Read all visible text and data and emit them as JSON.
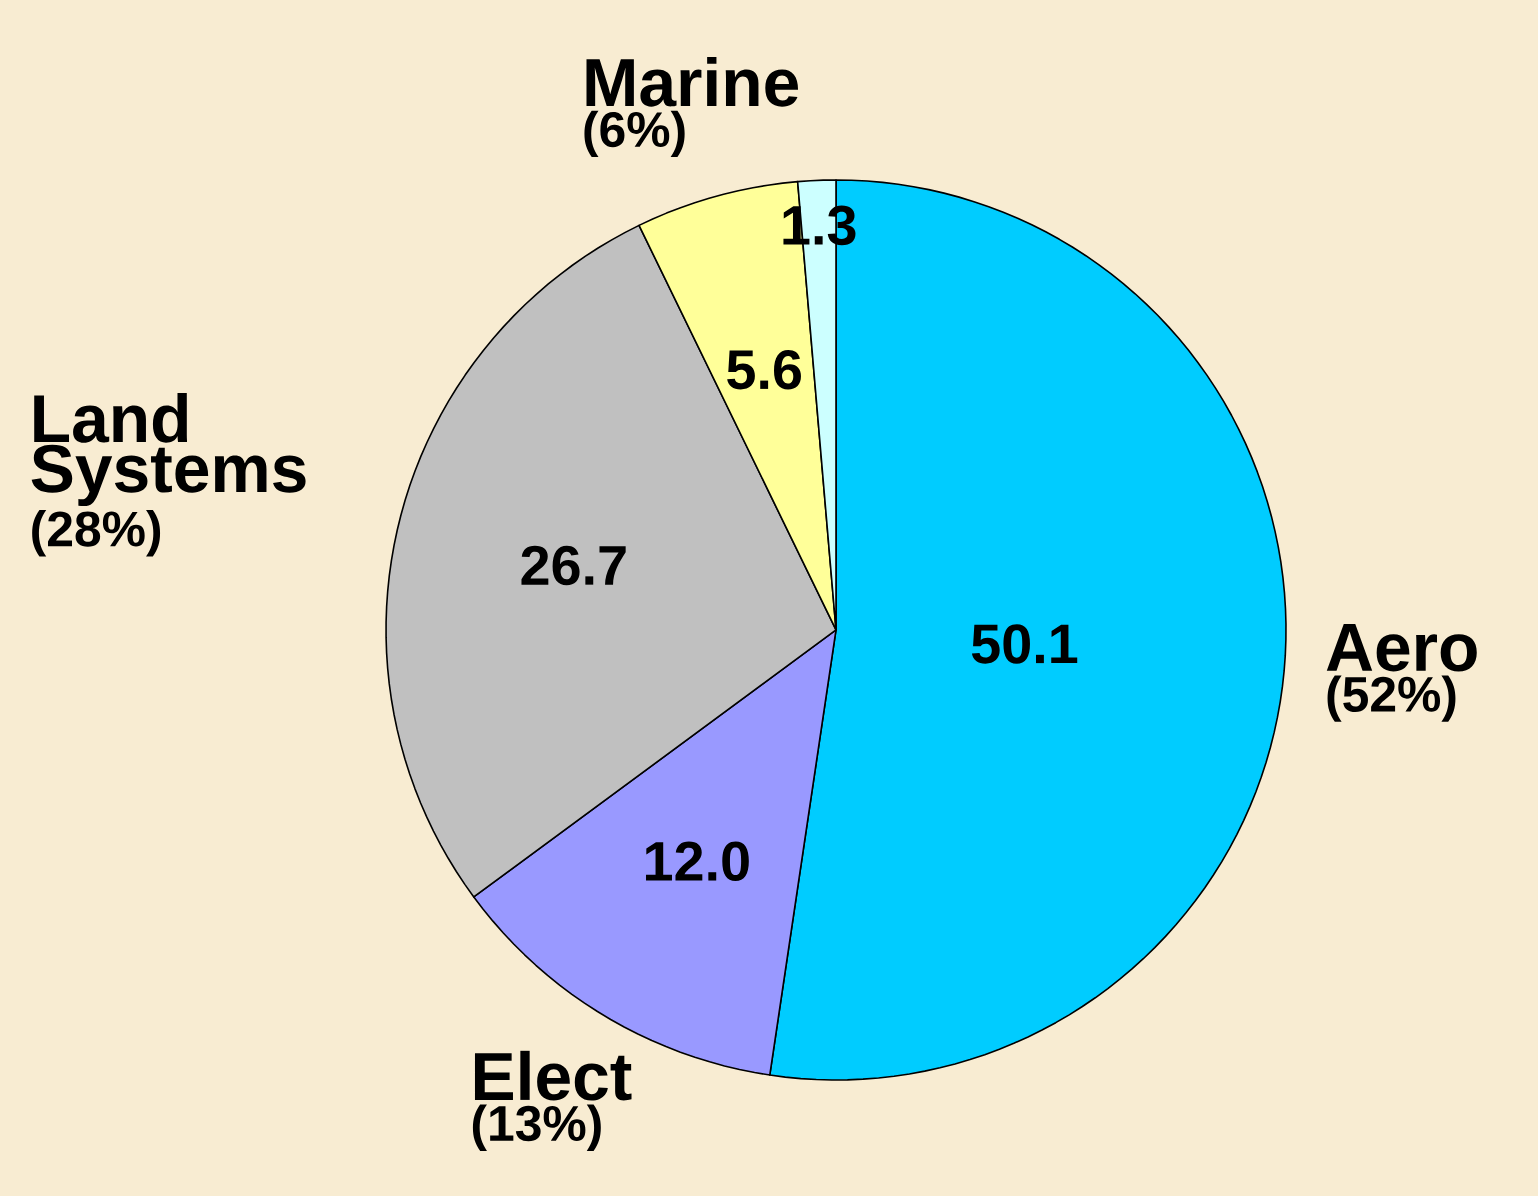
{
  "chart_data": {
    "type": "pie",
    "categories": [
      "Aero",
      "Elect",
      "Land Systems",
      "Marine",
      null
    ],
    "values": [
      50.1,
      12.0,
      26.7,
      5.6,
      1.3
    ],
    "value_labels": [
      "50.1",
      "12.0",
      "26.7",
      "5.6",
      "1.3"
    ],
    "colors": [
      "#00ccff",
      "#9999ff",
      "#c0c0c0",
      "#ffff99",
      "#ccffff"
    ],
    "annotations": [
      "(52%)",
      "(13%)",
      "(28%)",
      "(6%)"
    ]
  }
}
